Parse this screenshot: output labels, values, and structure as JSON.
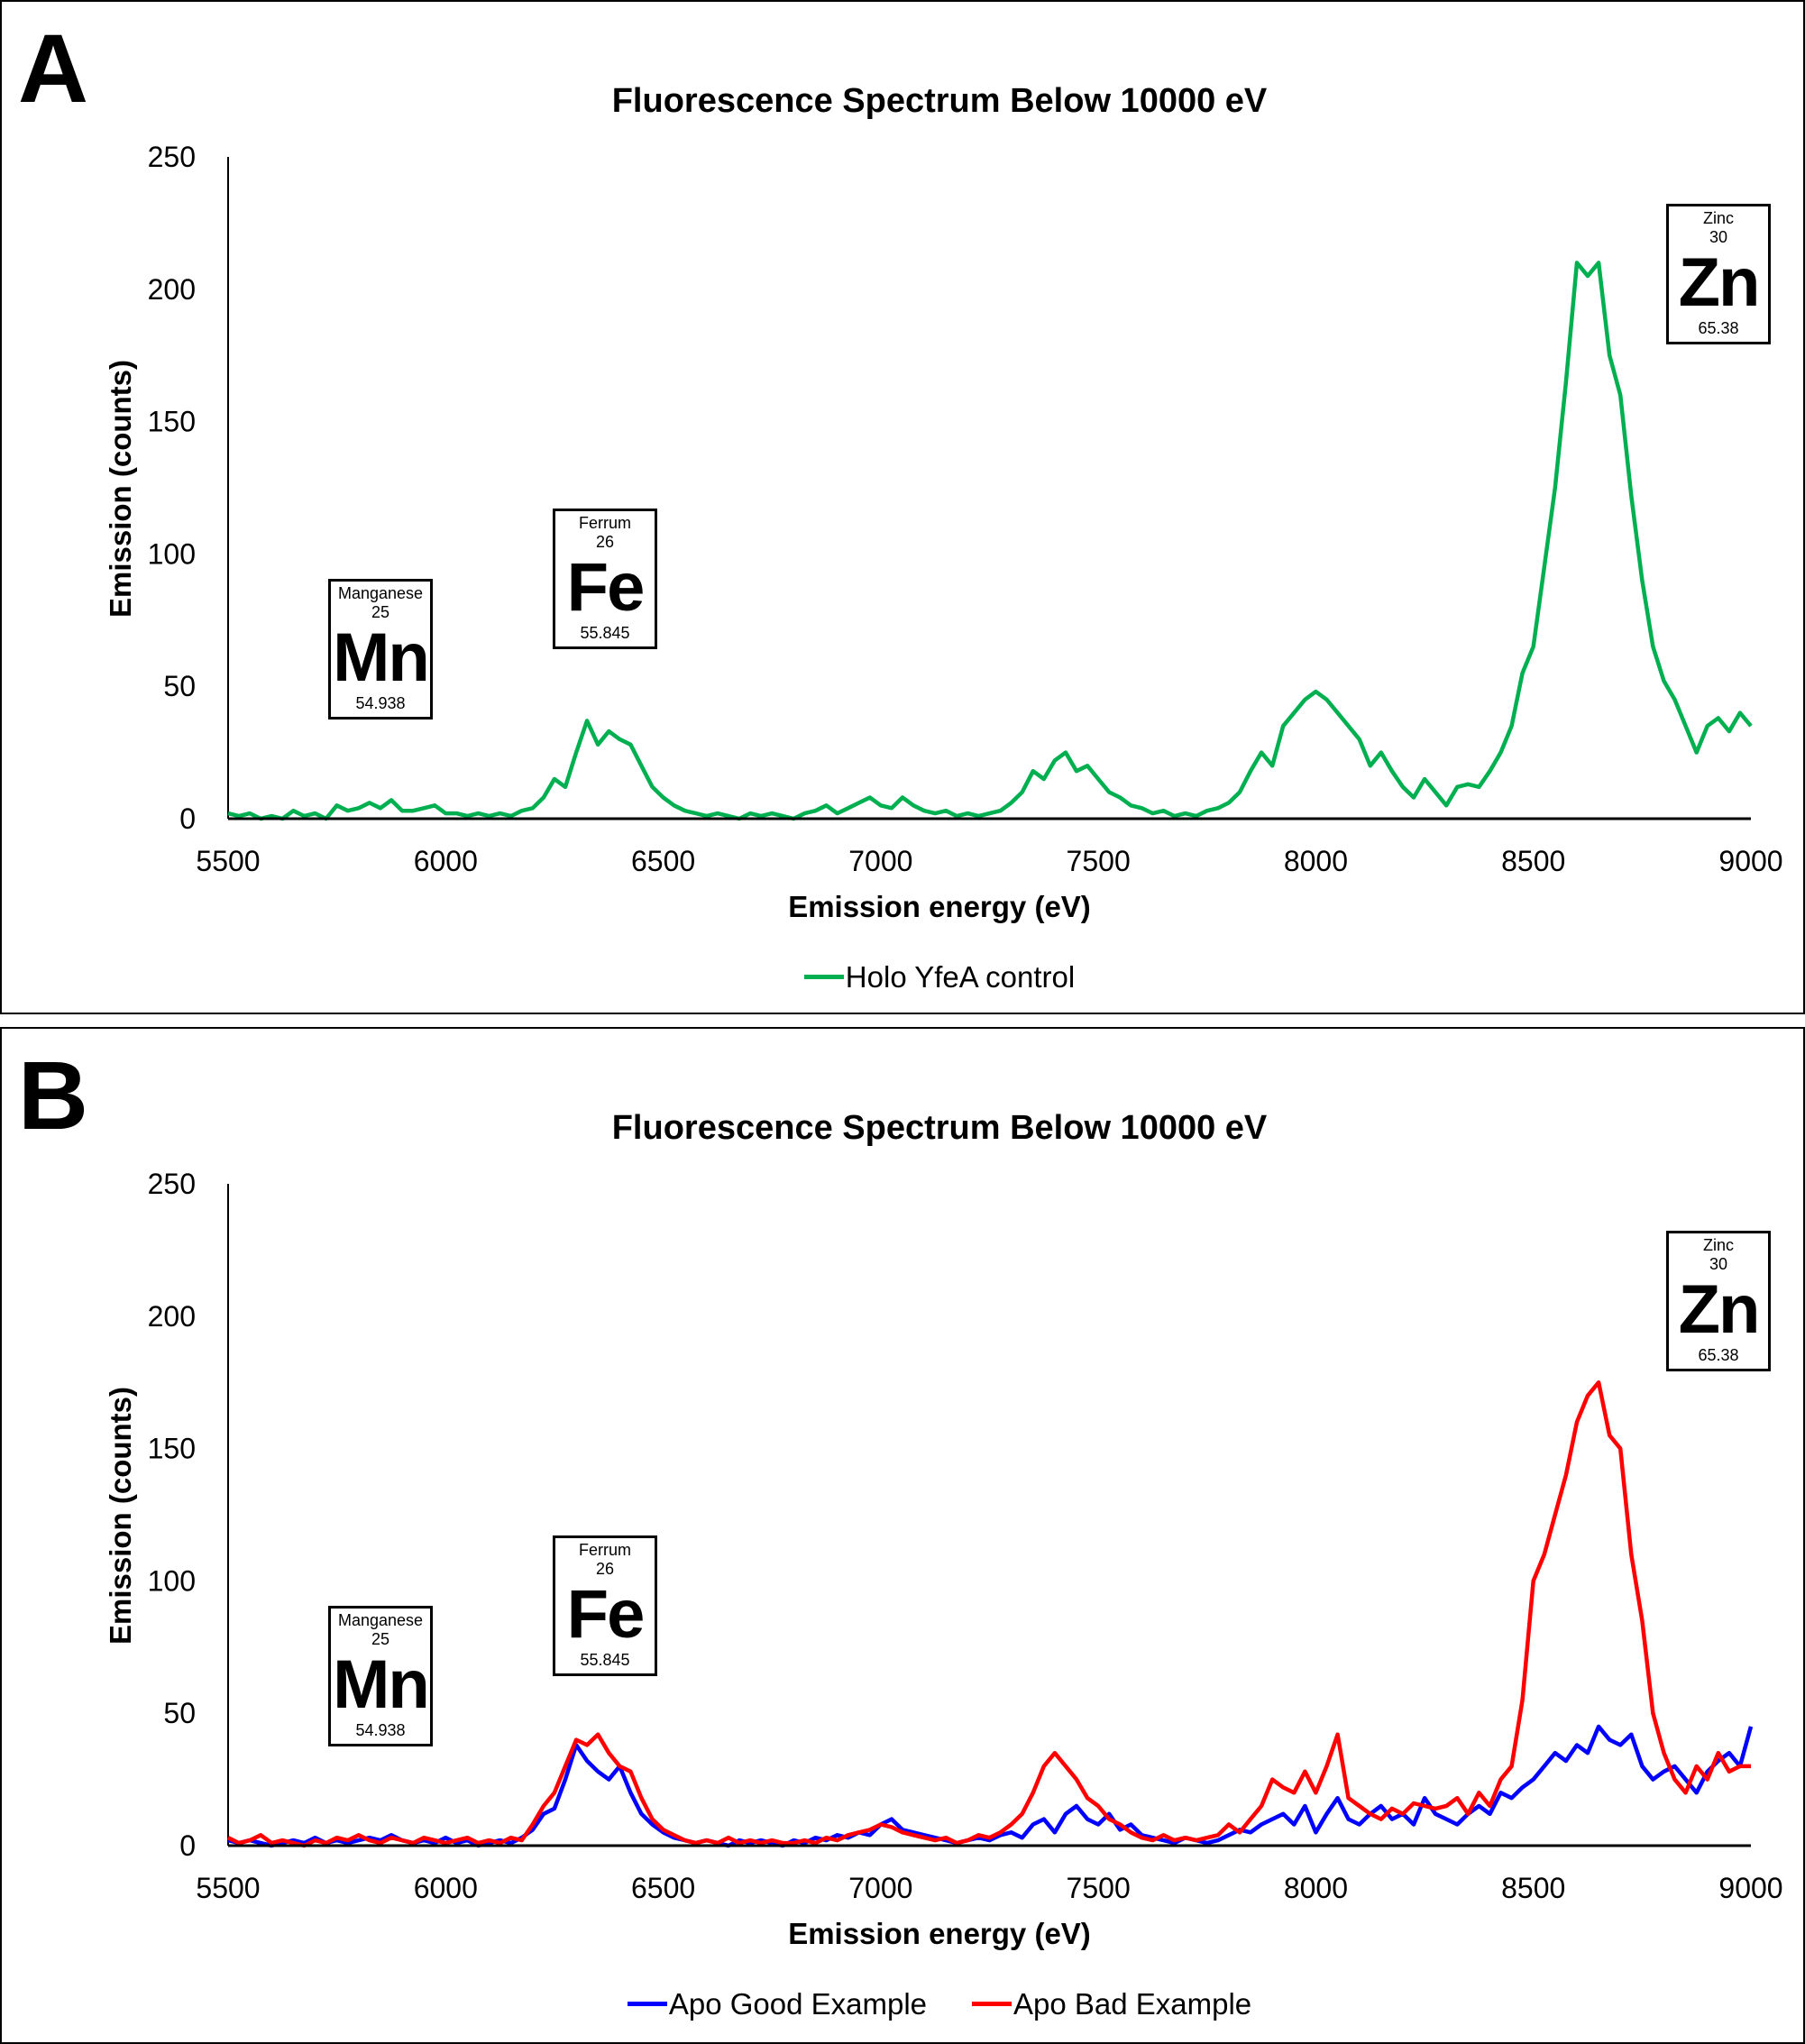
{
  "chart_data": [
    {
      "panel_label": "A",
      "type": "line",
      "title": "Fluorescence Spectrum Below 10000 eV",
      "xlabel": "Emission energy (eV)",
      "ylabel": "Emission (counts)",
      "xlim": [
        5500,
        9000
      ],
      "ylim": [
        0,
        250
      ],
      "xticks": [
        "5500",
        "6000",
        "6500",
        "7000",
        "7500",
        "8000",
        "8500",
        "9000"
      ],
      "yticks": [
        "0",
        "50",
        "100",
        "150",
        "200",
        "250"
      ],
      "grid": false,
      "legend_position": "bottom",
      "x_start": 5500,
      "x_step": 25,
      "series": [
        {
          "name": "Holo YfeA control",
          "color": "#00b050",
          "values": [
            2,
            1,
            2,
            0,
            1,
            0,
            3,
            1,
            2,
            0,
            5,
            3,
            4,
            6,
            4,
            7,
            3,
            3,
            4,
            5,
            2,
            2,
            1,
            2,
            1,
            2,
            1,
            3,
            4,
            8,
            15,
            12,
            25,
            37,
            28,
            33,
            30,
            28,
            20,
            12,
            8,
            5,
            3,
            2,
            1,
            2,
            1,
            0,
            2,
            1,
            2,
            1,
            0,
            2,
            3,
            5,
            2,
            4,
            6,
            8,
            5,
            4,
            8,
            5,
            3,
            2,
            3,
            1,
            2,
            1,
            2,
            3,
            6,
            10,
            18,
            15,
            22,
            25,
            18,
            20,
            15,
            10,
            8,
            5,
            4,
            2,
            3,
            1,
            2,
            1,
            3,
            4,
            6,
            10,
            18,
            25,
            20,
            35,
            40,
            45,
            48,
            45,
            40,
            35,
            30,
            20,
            25,
            18,
            12,
            8,
            15,
            10,
            5,
            12,
            13,
            12,
            18,
            25,
            35,
            55,
            65,
            95,
            125,
            165,
            210,
            205,
            210,
            175,
            160,
            122,
            90,
            65,
            52,
            45,
            35,
            25,
            35,
            38,
            33,
            40,
            35
          ]
        }
      ],
      "annotations": [
        {
          "name": "Manganese",
          "number": "25",
          "symbol": "Mn",
          "mass": "54.938"
        },
        {
          "name": "Ferrum",
          "number": "26",
          "symbol": "Fe",
          "mass": "55.845"
        },
        {
          "name": "Zinc",
          "number": "30",
          "symbol": "Zn",
          "mass": "65.38"
        }
      ]
    },
    {
      "panel_label": "B",
      "type": "line",
      "title": "Fluorescence Spectrum Below 10000 eV",
      "xlabel": "Emission energy (eV)",
      "ylabel": "Emission (counts)",
      "xlim": [
        5500,
        9000
      ],
      "ylim": [
        0,
        250
      ],
      "xticks": [
        "5500",
        "6000",
        "6500",
        "7000",
        "7500",
        "8000",
        "8500",
        "9000"
      ],
      "yticks": [
        "0",
        "50",
        "100",
        "150",
        "200",
        "250"
      ],
      "grid": false,
      "legend_position": "bottom",
      "x_start": 5500,
      "x_step": 25,
      "series": [
        {
          "name": "Apo Good Example",
          "color": "#0000ff",
          "values": [
            2,
            1,
            2,
            1,
            0,
            1,
            2,
            1,
            3,
            1,
            2,
            1,
            2,
            3,
            2,
            4,
            2,
            1,
            2,
            1,
            3,
            1,
            2,
            0,
            1,
            2,
            1,
            3,
            6,
            12,
            14,
            25,
            38,
            32,
            28,
            25,
            30,
            20,
            12,
            8,
            5,
            3,
            2,
            1,
            2,
            1,
            0,
            2,
            1,
            2,
            1,
            0,
            2,
            1,
            3,
            2,
            4,
            3,
            5,
            4,
            8,
            10,
            6,
            5,
            4,
            3,
            2,
            1,
            2,
            3,
            2,
            4,
            5,
            3,
            8,
            10,
            5,
            12,
            15,
            10,
            8,
            12,
            6,
            8,
            4,
            3,
            2,
            1,
            3,
            2,
            1,
            2,
            4,
            6,
            5,
            8,
            10,
            12,
            8,
            15,
            5,
            12,
            18,
            10,
            8,
            12,
            15,
            10,
            12,
            8,
            18,
            12,
            10,
            8,
            12,
            15,
            12,
            20,
            18,
            22,
            25,
            30,
            35,
            32,
            38,
            35,
            45,
            40,
            38,
            42,
            30,
            25,
            28,
            30,
            25,
            20,
            28,
            32,
            35,
            30,
            45
          ]
        },
        {
          "name": "Apo Bad Example",
          "color": "#ff0000",
          "values": [
            3,
            1,
            2,
            4,
            1,
            2,
            1,
            0,
            2,
            1,
            3,
            2,
            4,
            2,
            1,
            3,
            2,
            1,
            3,
            2,
            1,
            2,
            3,
            1,
            2,
            1,
            3,
            2,
            8,
            15,
            20,
            30,
            40,
            38,
            42,
            35,
            30,
            28,
            18,
            10,
            6,
            4,
            2,
            1,
            2,
            1,
            3,
            1,
            2,
            1,
            2,
            1,
            1,
            2,
            1,
            3,
            2,
            4,
            5,
            6,
            8,
            7,
            5,
            4,
            3,
            2,
            3,
            1,
            2,
            4,
            3,
            5,
            8,
            12,
            20,
            30,
            35,
            30,
            25,
            18,
            15,
            10,
            8,
            5,
            3,
            2,
            4,
            2,
            3,
            2,
            3,
            4,
            8,
            5,
            10,
            15,
            25,
            22,
            20,
            28,
            20,
            30,
            42,
            18,
            15,
            12,
            10,
            14,
            12,
            16,
            15,
            14,
            15,
            18,
            12,
            20,
            15,
            25,
            30,
            55,
            100,
            110,
            125,
            140,
            160,
            170,
            175,
            155,
            150,
            110,
            85,
            50,
            35,
            25,
            20,
            30,
            25,
            35,
            28,
            30,
            30
          ]
        }
      ],
      "annotations": [
        {
          "name": "Manganese",
          "number": "25",
          "symbol": "Mn",
          "mass": "54.938"
        },
        {
          "name": "Ferrum",
          "number": "26",
          "symbol": "Fe",
          "mass": "55.845"
        },
        {
          "name": "Zinc",
          "number": "30",
          "symbol": "Zn",
          "mass": "65.38"
        }
      ]
    }
  ]
}
